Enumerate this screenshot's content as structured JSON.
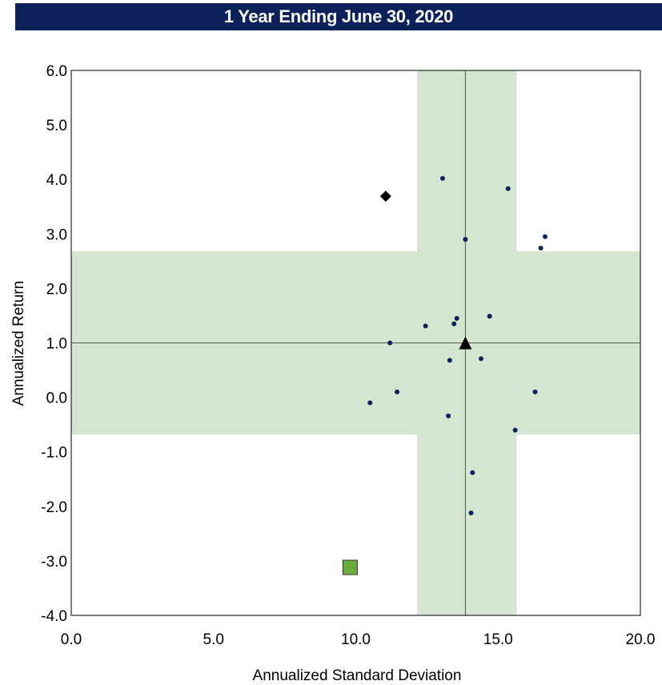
{
  "chart_data": {
    "type": "scatter",
    "title": "1 Year Ending June 30, 2020",
    "xlabel": "Annualized Standard Deviation",
    "ylabel": "Annualized Return",
    "xlim": [
      0,
      20
    ],
    "ylim": [
      -4,
      6
    ],
    "x_ticks": [
      "0.0",
      "5.0",
      "10.0",
      "15.0",
      "20.0"
    ],
    "y_ticks": [
      "6.0",
      "5.0",
      "4.0",
      "3.0",
      "2.0",
      "1.0",
      "0.0",
      "-1.0",
      "-2.0",
      "-3.0",
      "-4.0"
    ],
    "grid": false,
    "colors": {
      "band": "#d4e6cf",
      "peer_dot": "#0c2159",
      "square": "#6aae3a",
      "title_bar": "#0c2159"
    },
    "reference_lines": {
      "x": 13.85,
      "y": 1.0
    },
    "bands": {
      "vertical": {
        "x_from": 12.15,
        "x_to": 15.65
      },
      "horizontal": {
        "y_from": -0.68,
        "y_to": 2.68
      }
    },
    "peer_points": [
      {
        "x": 13.05,
        "y": 4.02
      },
      {
        "x": 15.35,
        "y": 3.83
      },
      {
        "x": 13.85,
        "y": 2.9
      },
      {
        "x": 16.65,
        "y": 2.95
      },
      {
        "x": 16.5,
        "y": 2.74
      },
      {
        "x": 14.7,
        "y": 1.49
      },
      {
        "x": 13.55,
        "y": 1.45
      },
      {
        "x": 13.45,
        "y": 1.35
      },
      {
        "x": 12.45,
        "y": 1.31
      },
      {
        "x": 11.2,
        "y": 1.0
      },
      {
        "x": 14.4,
        "y": 0.71
      },
      {
        "x": 13.3,
        "y": 0.68
      },
      {
        "x": 11.45,
        "y": 0.1
      },
      {
        "x": 16.3,
        "y": 0.1
      },
      {
        "x": 10.5,
        "y": -0.1
      },
      {
        "x": 13.25,
        "y": -0.34
      },
      {
        "x": 15.6,
        "y": -0.6
      },
      {
        "x": 14.1,
        "y": -1.38
      },
      {
        "x": 14.05,
        "y": -2.12
      }
    ],
    "markers": [
      {
        "shape": "diamond",
        "color": "#000000",
        "x": 11.05,
        "y": 3.69
      },
      {
        "shape": "triangle",
        "color": "#000000",
        "x": 13.85,
        "y": 1.0
      },
      {
        "shape": "square",
        "color": "#6aae3a",
        "x": 9.8,
        "y": -3.12
      }
    ]
  }
}
